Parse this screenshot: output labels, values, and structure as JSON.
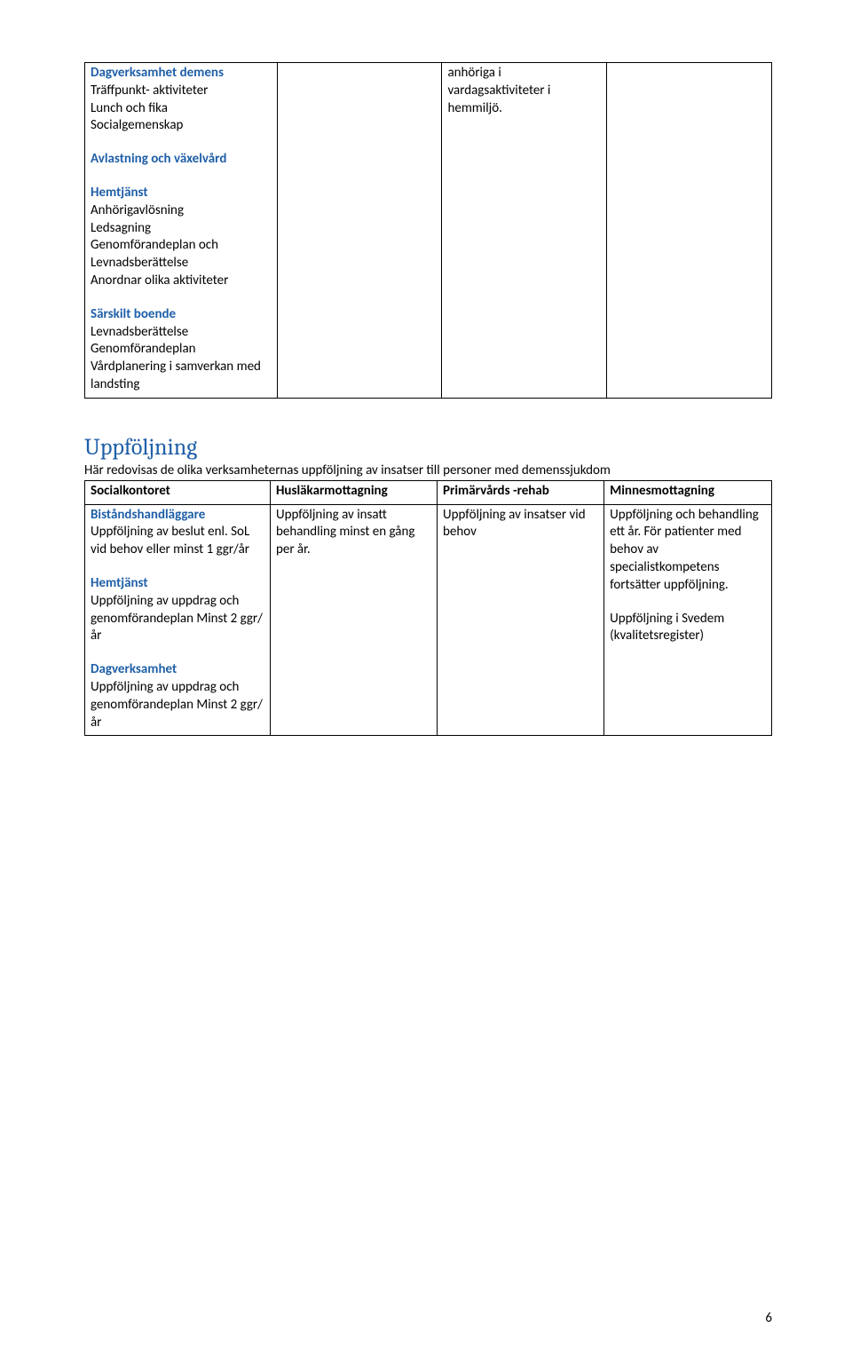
{
  "table1": {
    "col1": {
      "dagverksamhet_heading": "Dagverksamhet demens",
      "dagverksamhet_lines": [
        "Träffpunkt- aktiviteter",
        "Lunch och fika",
        "Socialgemenskap"
      ],
      "avlastning_heading": "Avlastning och växelvård",
      "hemtjanst_heading": "Hemtjänst",
      "hemtjanst_lines": [
        "Anhörigavlösning",
        "Ledsagning",
        "Genomförandeplan och Levnadsberättelse",
        "Anordnar olika aktiviteter"
      ],
      "sarskilt_heading": "Särskilt boende",
      "sarskilt_lines": [
        "Levnadsberättelse",
        "Genomförandeplan",
        "Vårdplanering i samverkan med landsting"
      ]
    },
    "col3": {
      "text": "anhöriga i vardagsaktiviteter i hemmiljö."
    }
  },
  "section2": {
    "heading": "Uppföljning",
    "intro": "Här redovisas de olika verksamheternas uppföljning av insatser till personer med demenssjukdom"
  },
  "table2": {
    "headers": [
      "Socialkontoret",
      "Husläkarmottagning",
      "Primärvårds -rehab",
      "Minnesmottagning"
    ],
    "row2": {
      "col1": {
        "bistand_heading": "Biståndshandläggare",
        "bistand_text": "Uppföljning av beslut enl. SoL vid behov eller minst 1 ggr/år",
        "hemtjanst_heading": "Hemtjänst",
        "hemtjanst_text": "Uppföljning av uppdrag och genomförandeplan Minst 2 ggr/ år",
        "dagverksamhet_heading": "Dagverksamhet",
        "dagverksamhet_text": "Uppföljning av uppdrag och genomförandeplan Minst 2 ggr/ år"
      },
      "col2": "Uppföljning av insatt behandling minst en gång per år.",
      "col3": "Uppföljning av insatser vid behov",
      "col4_p1": "Uppföljning och behandling ett år. För patienter med behov av specialistkompetens fortsätter uppföljning.",
      "col4_p2": "Uppföljning i Svedem (kvalitetsregister)"
    }
  },
  "pageNumber": "6"
}
